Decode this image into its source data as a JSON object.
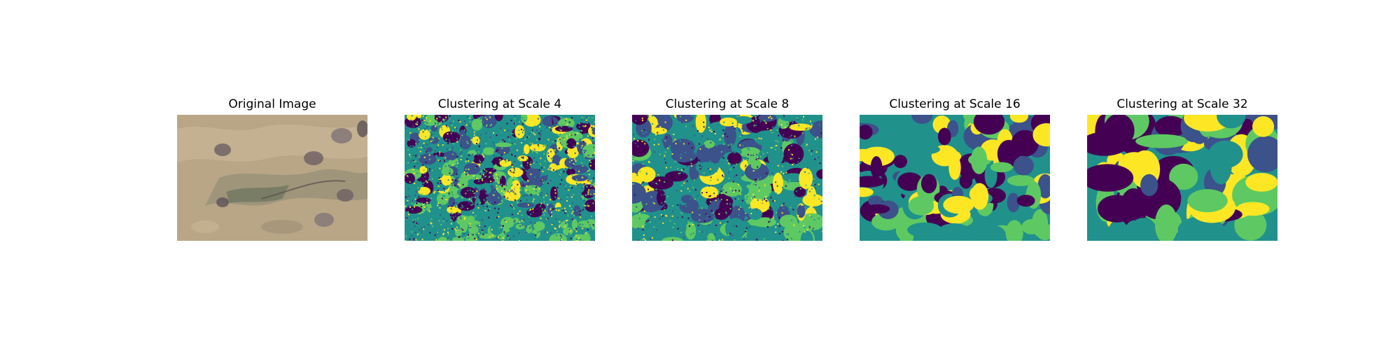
{
  "figure": {
    "panels": [
      {
        "title": "Original Image",
        "kind": "photo",
        "colors": [
          "#b8a686",
          "#a39276",
          "#c9b797",
          "#8c8a74",
          "#7a6f74",
          "#6f7760"
        ]
      },
      {
        "title": "Clustering at Scale 4",
        "kind": "cluster",
        "colors": [
          "#440154",
          "#3b528b",
          "#21918c",
          "#5ec962",
          "#fde725"
        ]
      },
      {
        "title": "Clustering at Scale 8",
        "kind": "cluster",
        "colors": [
          "#440154",
          "#3b528b",
          "#21918c",
          "#5ec962",
          "#fde725"
        ]
      },
      {
        "title": "Clustering at Scale 16",
        "kind": "cluster",
        "colors": [
          "#440154",
          "#3b528b",
          "#21918c",
          "#5ec962",
          "#fde725"
        ]
      },
      {
        "title": "Clustering at Scale 32",
        "kind": "cluster",
        "colors": [
          "#440154",
          "#3b528b",
          "#21918c",
          "#5ec962",
          "#fde725"
        ]
      }
    ]
  }
}
